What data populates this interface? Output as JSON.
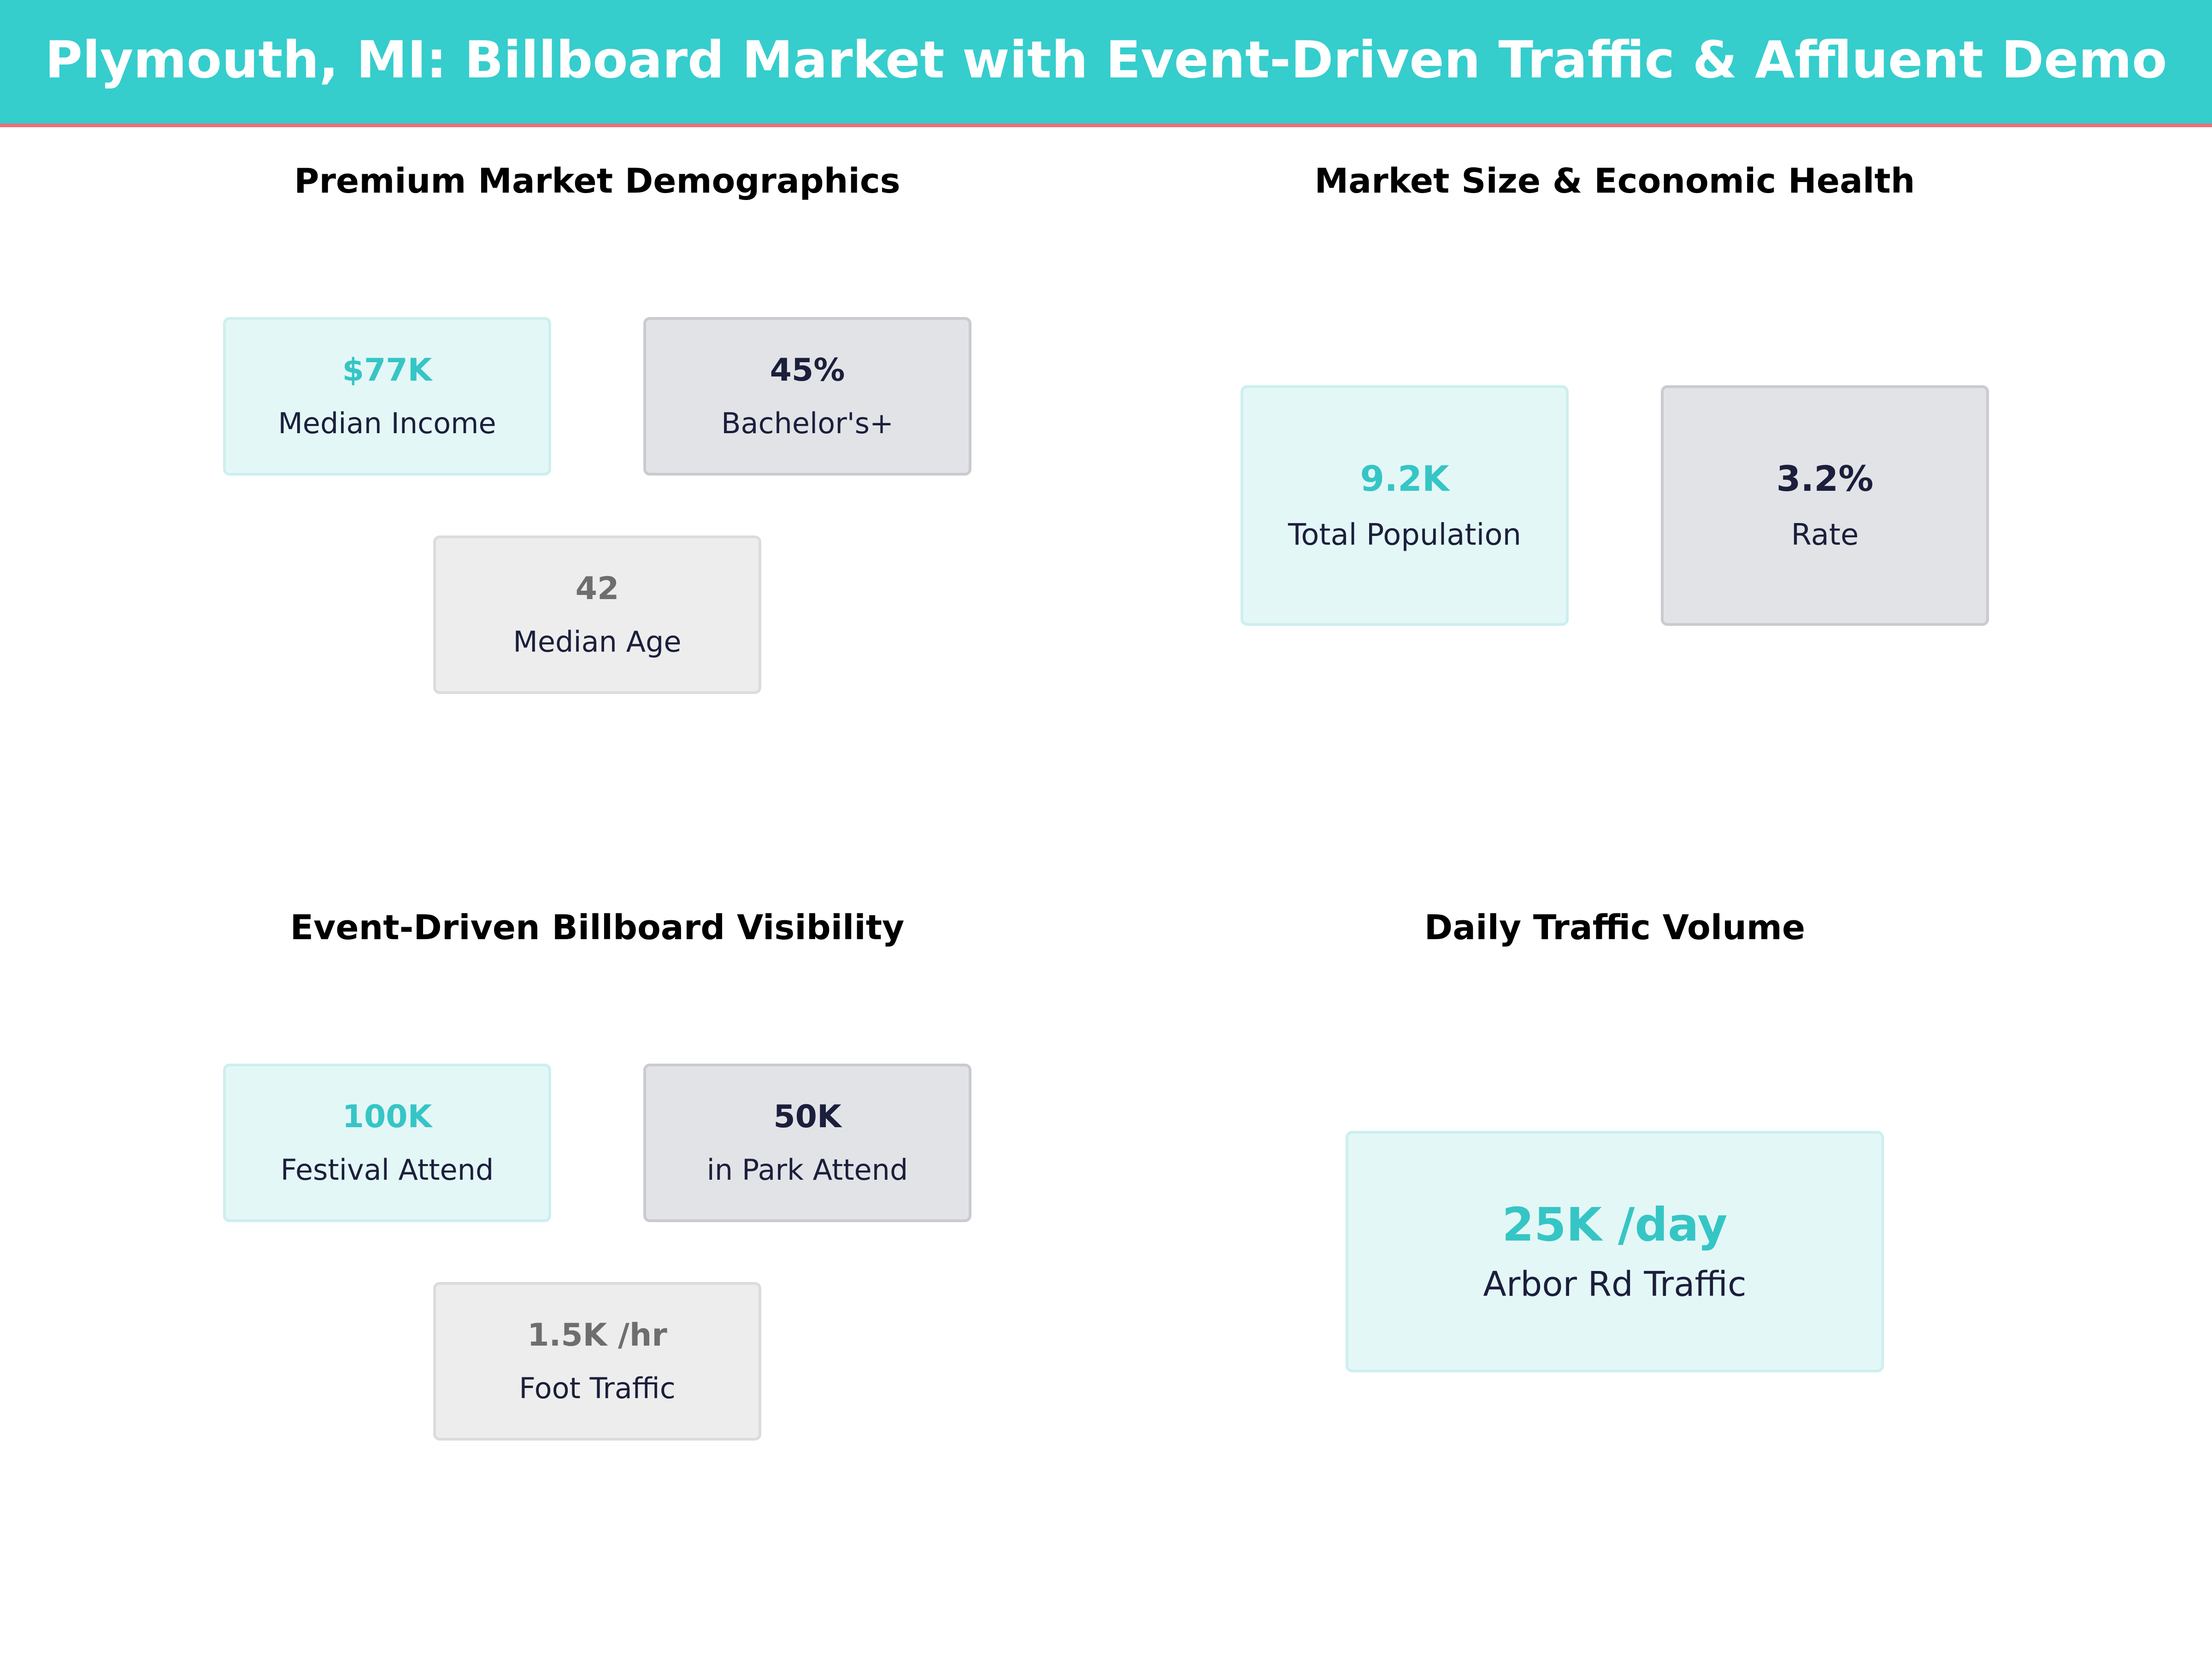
{
  "header": {
    "title": "Plymouth, MI: Billboard Market with Event-Driven Traffic & Affluent Demo"
  },
  "colors": {
    "header_bg": "#36CDCD",
    "header_underline": "#E8707A",
    "teal_value": "#36C5C5",
    "navy_value": "#1B1F3B",
    "gray_value": "#6E6E6E"
  },
  "panels": {
    "demographics": {
      "title": "Premium Market Demographics",
      "cards": [
        {
          "value": "$77K",
          "label": "Median Income"
        },
        {
          "value": "45%",
          "label": "Bachelor's+"
        },
        {
          "value": "42",
          "label": "Median Age"
        }
      ]
    },
    "market_size": {
      "title": "Market Size & Economic Health",
      "cards": [
        {
          "value": "9.2K",
          "label": "Total Population"
        },
        {
          "value": "3.2%",
          "label": "Rate"
        }
      ]
    },
    "events": {
      "title": "Event-Driven Billboard Visibility",
      "cards": [
        {
          "value": "100K",
          "label": "Festival Attend"
        },
        {
          "value": "50K",
          "label": "in Park Attend"
        },
        {
          "value": "1.5K /hr",
          "label": "Foot Traffic"
        }
      ]
    },
    "traffic": {
      "title": "Daily Traffic Volume",
      "cards": [
        {
          "value": "25K /day",
          "label": "Arbor Rd Traffic"
        }
      ]
    }
  }
}
